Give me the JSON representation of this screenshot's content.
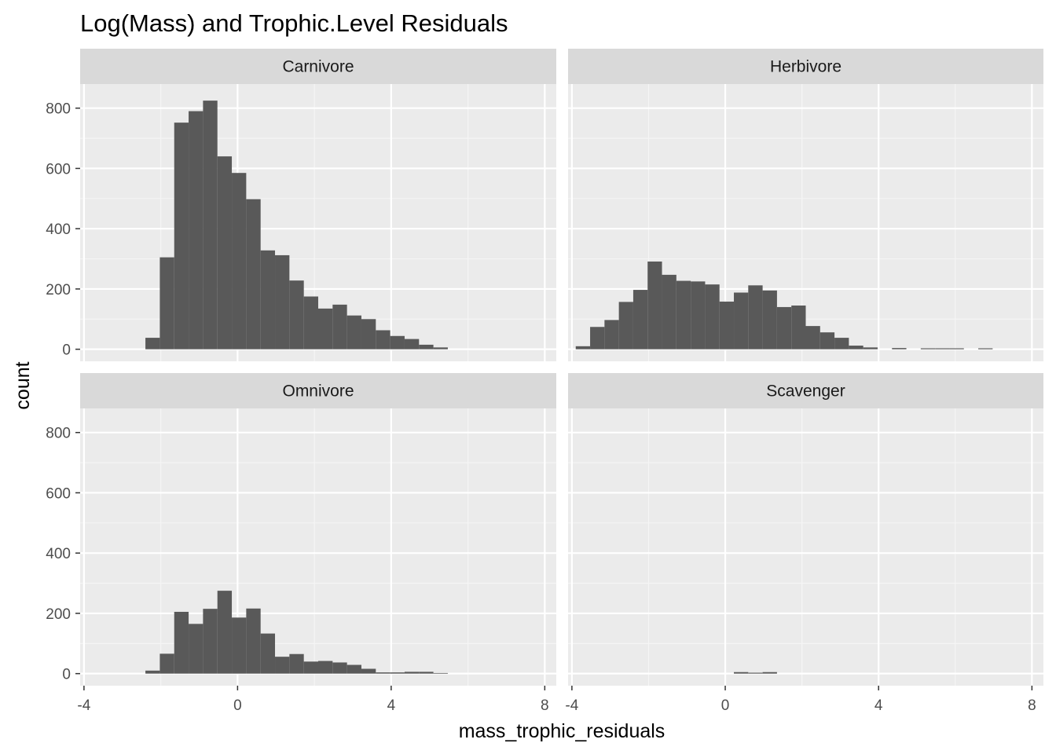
{
  "chart_data": {
    "type": "bar",
    "title": "Log(Mass) and Trophic.Level Residuals",
    "xlabel": "mass_trophic_residuals",
    "ylabel": "count",
    "xlim": [
      -4.1,
      8.3
    ],
    "ylim": [
      -40,
      880
    ],
    "x_ticks": [
      -4,
      0,
      4,
      8
    ],
    "x_tick_labels": [
      "-4",
      "0",
      "4",
      "8"
    ],
    "y_ticks": [
      0,
      200,
      400,
      600,
      800
    ],
    "y_tick_labels": [
      "0",
      "200",
      "400",
      "600",
      "800"
    ],
    "bin_width": 0.375,
    "bin_start": -3.9,
    "colors": {
      "bar": "#595959",
      "panel": "#ebebeb",
      "grid_major": "#ffffff",
      "grid_minor": "#f5f5f5",
      "strip": "#d9d9d9"
    },
    "facets": [
      {
        "name": "Carnivore",
        "values": [
          0,
          0,
          0,
          0,
          38,
          305,
          752,
          790,
          825,
          640,
          585,
          498,
          328,
          312,
          228,
          175,
          135,
          148,
          112,
          100,
          63,
          44,
          34,
          15,
          6,
          0,
          0,
          0,
          0,
          0,
          0,
          0,
          0
        ]
      },
      {
        "name": "Herbivore",
        "values": [
          10,
          74,
          97,
          157,
          197,
          291,
          247,
          227,
          225,
          215,
          158,
          188,
          212,
          195,
          140,
          145,
          77,
          56,
          38,
          12,
          6,
          0,
          4,
          0,
          3,
          3,
          3,
          0,
          3,
          0,
          0,
          0,
          0
        ]
      },
      {
        "name": "Omnivore",
        "values": [
          0,
          0,
          0,
          0,
          10,
          66,
          205,
          165,
          215,
          275,
          186,
          216,
          133,
          56,
          65,
          40,
          42,
          37,
          29,
          16,
          4,
          4,
          6,
          6,
          2,
          0,
          0,
          0,
          0,
          0,
          0,
          0,
          0
        ]
      },
      {
        "name": "Scavenger",
        "values": [
          0,
          0,
          0,
          0,
          0,
          0,
          0,
          0,
          0,
          0,
          0,
          5,
          3,
          5,
          0,
          0,
          0,
          0,
          0,
          0,
          0,
          0,
          0,
          0,
          0,
          0,
          0,
          0,
          0,
          0,
          0,
          0,
          0
        ]
      }
    ]
  }
}
